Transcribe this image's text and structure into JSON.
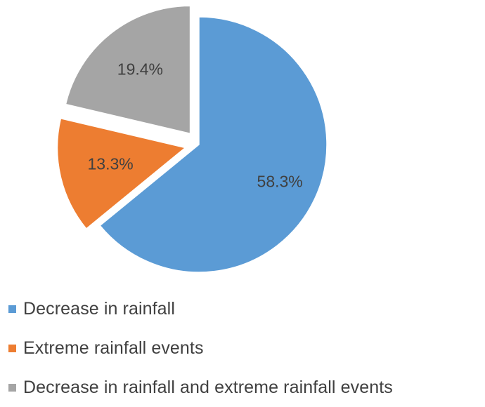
{
  "chart_data": {
    "type": "pie",
    "title": "",
    "series": [
      {
        "name": "Decrease in rainfall",
        "value": 58.3,
        "label": "58.3%",
        "color": "#5B9BD5"
      },
      {
        "name": "Extreme rainfall events",
        "value": 13.3,
        "label": "13.3%",
        "color": "#ED7D31"
      },
      {
        "name": "Decrease in rainfall and extreme rainfall events",
        "value": 19.4,
        "label": "19.4%",
        "color": "#A5A5A5"
      }
    ],
    "legend_position": "bottom",
    "exploded": true
  }
}
